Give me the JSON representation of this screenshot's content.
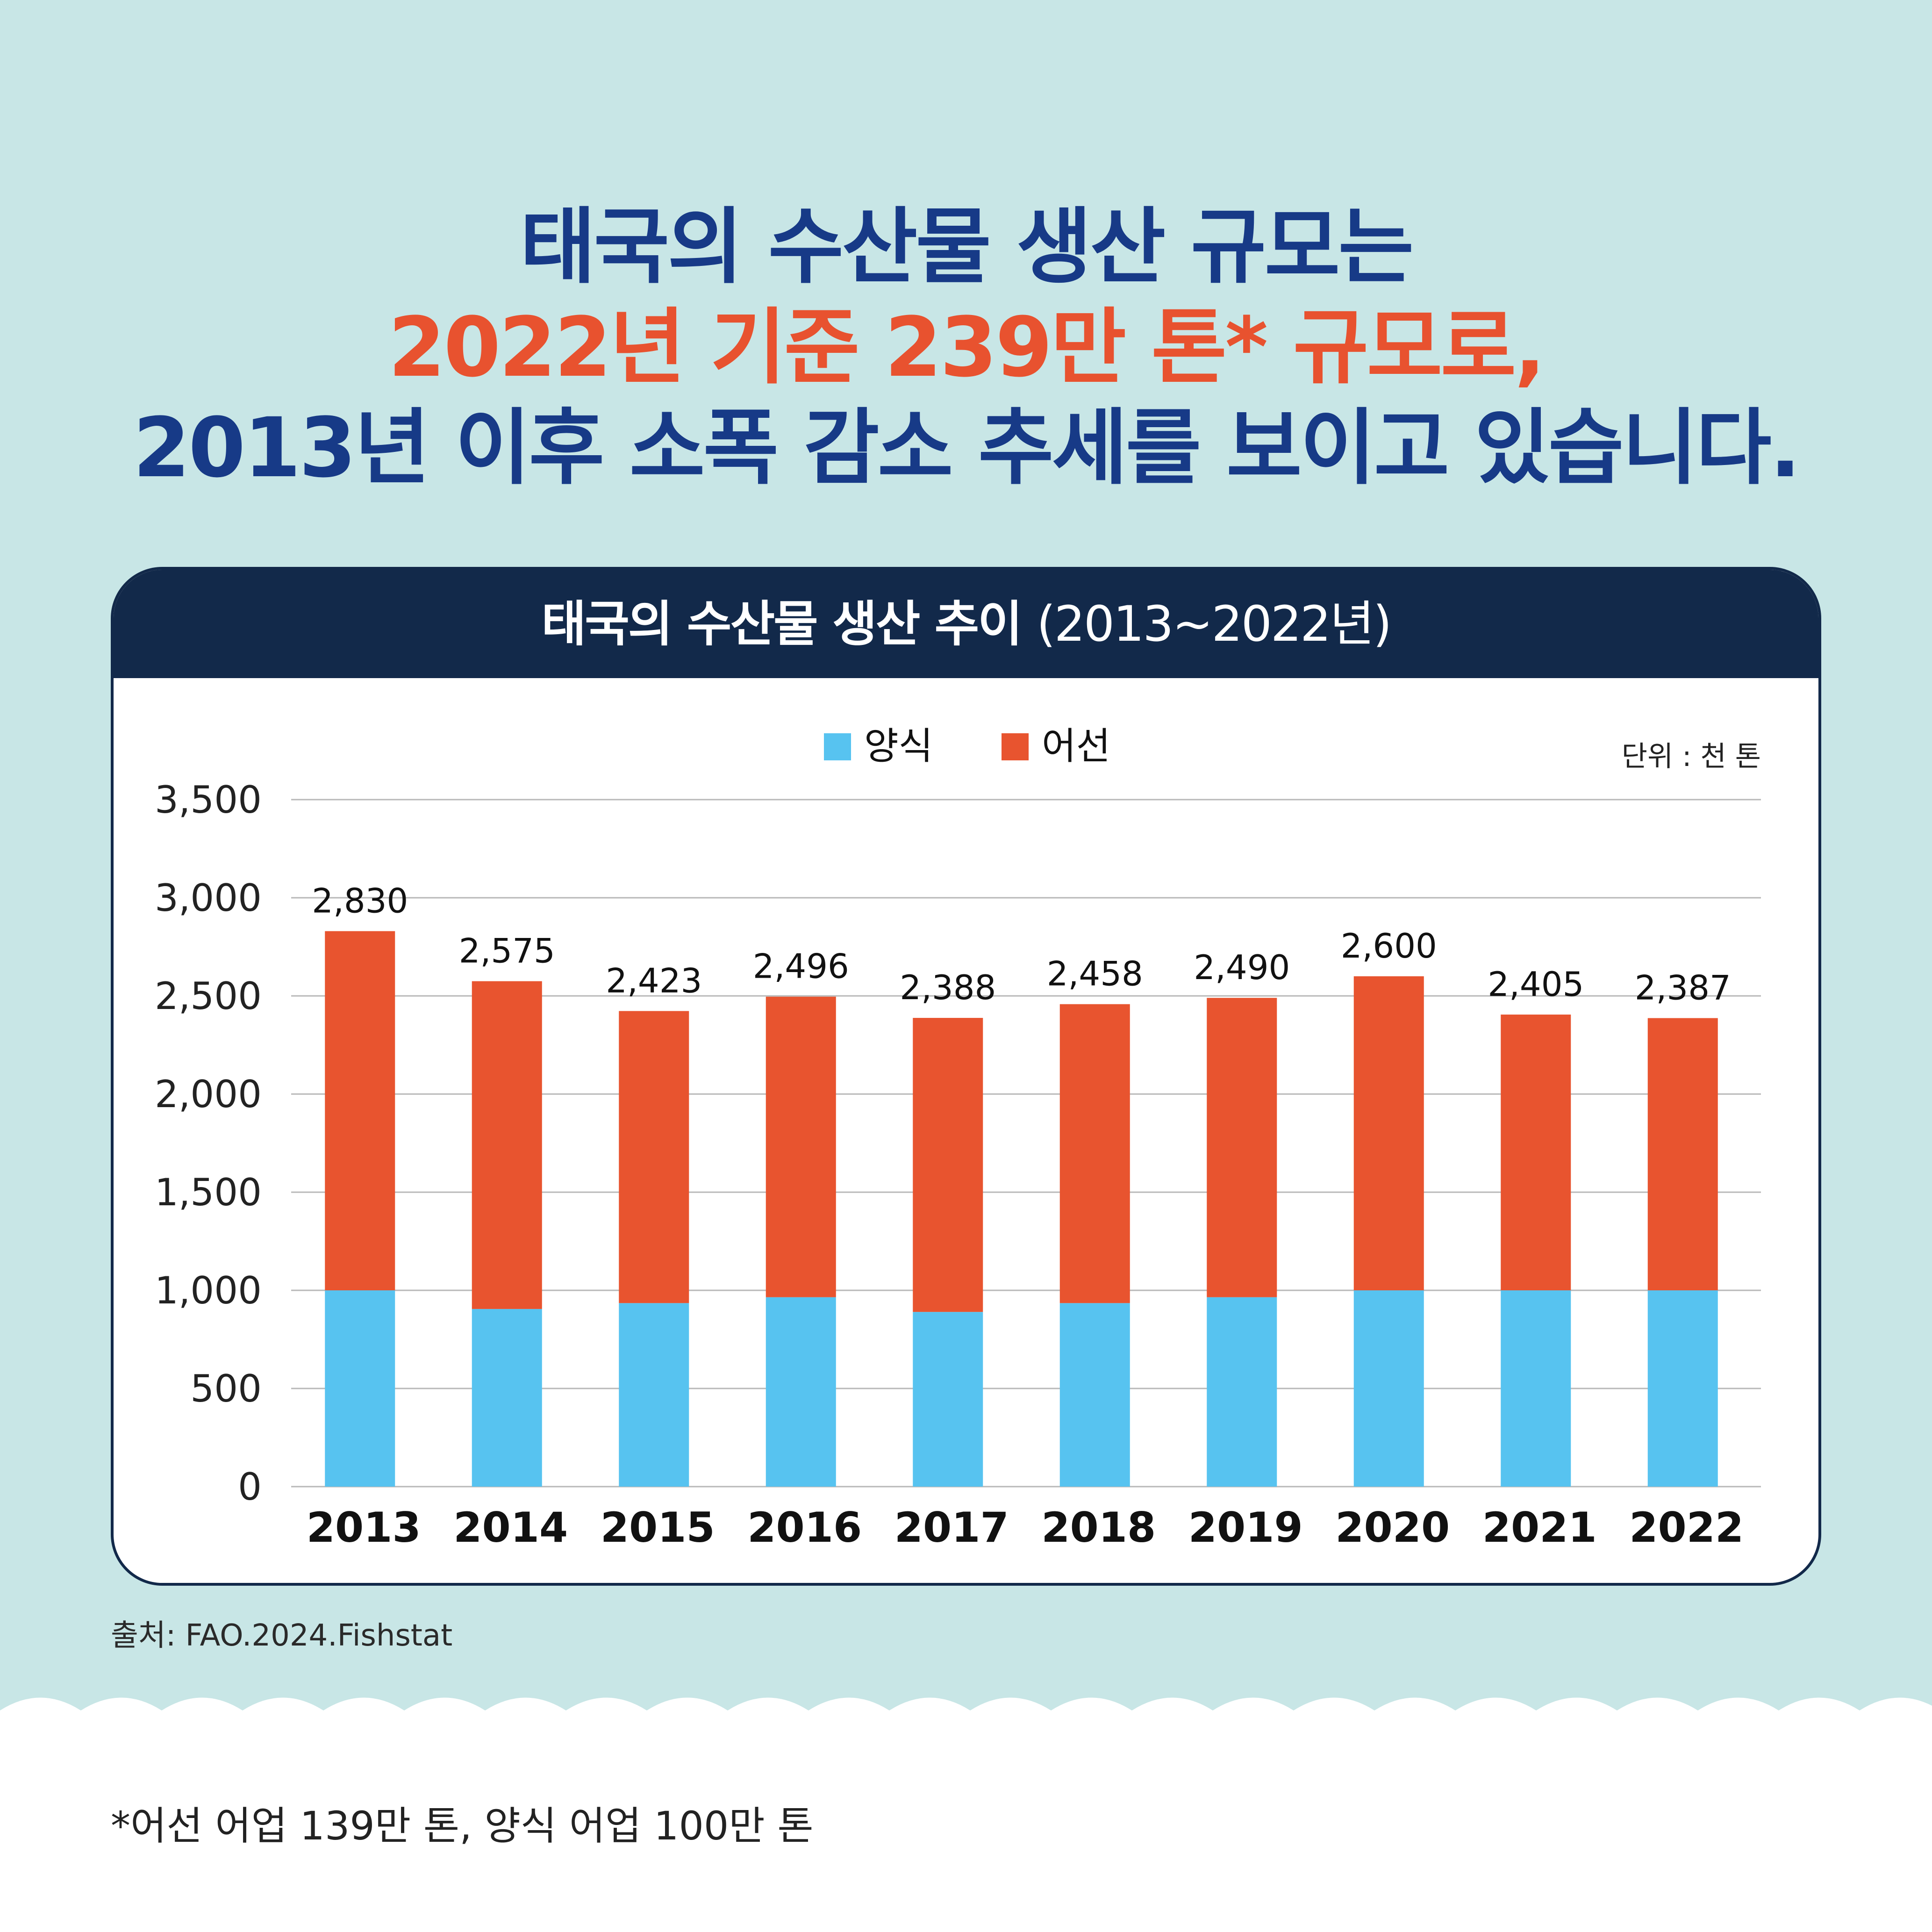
{
  "headline": {
    "line1": "태국의 수산물 생산 규모는",
    "line2": "2022년 기준 239만 톤* 규모로,",
    "line3": "2013년 이후 소폭 감소 추세를 보이고 있습니다."
  },
  "card": {
    "title_main": "태국의 수산물 생산 추이",
    "title_sub": "(2013~2022년)"
  },
  "chart_data": {
    "type": "bar",
    "stacked": true,
    "unit_label": "단위 : 천 톤",
    "categories": [
      "2013",
      "2014",
      "2015",
      "2016",
      "2017",
      "2018",
      "2019",
      "2020",
      "2021",
      "2022"
    ],
    "series": [
      {
        "name": "양식",
        "color": "#57c3f0",
        "values": [
          1000,
          905,
          935,
          965,
          890,
          935,
          965,
          1000,
          1000,
          1000
        ]
      },
      {
        "name": "어선",
        "color": "#e8542f",
        "values": [
          1830,
          1670,
          1488,
          1531,
          1498,
          1523,
          1525,
          1600,
          1405,
          1387
        ]
      }
    ],
    "totals": [
      2830,
      2575,
      2423,
      2496,
      2388,
      2458,
      2490,
      2600,
      2405,
      2387
    ],
    "total_labels": [
      "2,830",
      "2,575",
      "2,423",
      "2,496",
      "2,388",
      "2,458",
      "2,490",
      "2,600",
      "2,405",
      "2,387"
    ],
    "yticks": [
      0,
      500,
      1000,
      1500,
      2000,
      2500,
      3000,
      3500
    ],
    "ytick_labels": [
      "0",
      "500",
      "1,000",
      "1,500",
      "2,000",
      "2,500",
      "3,000",
      "3,500"
    ],
    "ylim": [
      0,
      3500
    ],
    "grid": true,
    "legend": "top-center"
  },
  "source": "출처: FAO.2024.Fishstat",
  "footnote": "*어선 어업 139만 톤, 양식 어업 100만 톤",
  "colors": {
    "background": "#c8e6e6",
    "navy": "#173a87",
    "accent": "#e8522f",
    "header": "#12294a"
  }
}
